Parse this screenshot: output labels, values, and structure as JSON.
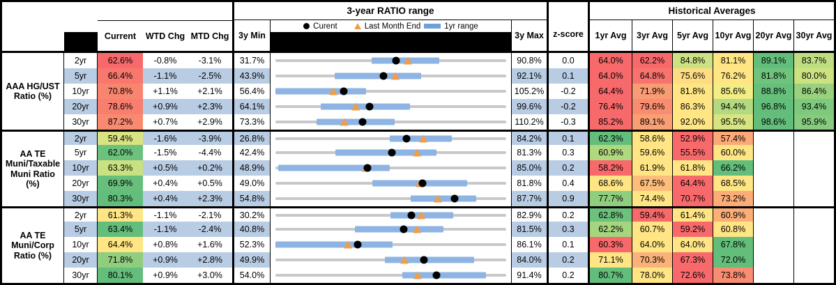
{
  "header": {
    "range_title": "3-year RATIO range",
    "hist_title": "Historical Averages",
    "col_current": "Current",
    "col_wtd": "WTD Chg",
    "col_mtd": "MTD Chg",
    "col_3y_min": "3y Min",
    "col_3y_max": "3y Max",
    "col_zscore": "z-score",
    "avg_cols": [
      "1yr Avg",
      "3yr Avg",
      "5yr Avg",
      "10yr Avg",
      "20yr Avg",
      "30yr Avg"
    ],
    "legend": {
      "current": "Curent",
      "last_month_end": "Last Month End",
      "range_1yr": "1yr range"
    }
  },
  "colors": {
    "stripe_blue": "#B8CCE4",
    "range_line_gray": "#C8C8C8",
    "range_bar_blue": "#8EB4E3",
    "legend_bar_blue": "#6FA0D6",
    "marker_dot_black": "#000000",
    "marker_triangle_orange": "#F39C47",
    "heat_red": "#F8696B",
    "heat_yellow": "#FFE584",
    "heat_green": "#63BE7B"
  },
  "chart_data": {
    "type": "table",
    "note_units": "percent",
    "groups": [
      {
        "label": "AAA HG/UST Ratio (%)",
        "rows": [
          {
            "tenor": "2yr",
            "current": 62.6,
            "wtd": -0.8,
            "mtd": -3.1,
            "min_3y": 31.7,
            "max_3y": 90.8,
            "zscore": 0.0,
            "range_1yr": [
              56.4,
              73.6
            ],
            "last_month_end": 65.6,
            "avgs": [
              64.0,
              62.2,
              84.8,
              81.1,
              89.1,
              83.7
            ],
            "current_bg": "#F8696B",
            "avg_bgs": [
              "#F8696B",
              "#F8696B",
              "#CCE181",
              "#FFE584",
              "#63BE7B",
              "#C0DE81"
            ]
          },
          {
            "tenor": "5yr",
            "current": 66.4,
            "wtd": -1.1,
            "mtd": -2.5,
            "min_3y": 43.9,
            "max_3y": 92.1,
            "zscore": 0.1,
            "range_1yr": [
              56.3,
              74.4
            ],
            "last_month_end": 69.0,
            "avgs": [
              64.0,
              64.8,
              75.6,
              76.2,
              81.8,
              80.0
            ],
            "current_bg": "#F8786E",
            "avg_bgs": [
              "#F8696B",
              "#F8736D",
              "#FEDC82",
              "#FFE584",
              "#70C37C",
              "#CCE281"
            ]
          },
          {
            "tenor": "10yr",
            "current": 70.8,
            "wtd": 1.1,
            "mtd": 2.1,
            "min_3y": 56.4,
            "max_3y": 105.2,
            "zscore": -0.2,
            "range_1yr": [
              56.4,
              75.5
            ],
            "last_month_end": 68.7,
            "avgs": [
              64.4,
              71.9,
              81.8,
              85.6,
              88.8,
              86.4
            ],
            "current_bg": "#F9856F",
            "avg_bgs": [
              "#F8696B",
              "#F99C74",
              "#FFE584",
              "#F2EE85",
              "#66BF7B",
              "#9AD17F"
            ]
          },
          {
            "tenor": "20yr",
            "current": 78.6,
            "wtd": 0.9,
            "mtd": 2.3,
            "min_3y": 64.1,
            "max_3y": 99.6,
            "zscore": -0.2,
            "range_1yr": [
              71.1,
              84.8
            ],
            "last_month_end": 76.4,
            "avgs": [
              76.4,
              79.6,
              86.3,
              94.4,
              96.8,
              93.4
            ],
            "current_bg": "#F87E6F",
            "avg_bgs": [
              "#F8696B",
              "#F98D71",
              "#FFE584",
              "#B3DA80",
              "#63BE7B",
              "#7EC97D"
            ]
          },
          {
            "tenor": "30yr",
            "current": 87.2,
            "wtd": 0.7,
            "mtd": 2.9,
            "min_3y": 73.3,
            "max_3y": 110.2,
            "zscore": -0.3,
            "range_1yr": [
              79.9,
              92.4
            ],
            "last_month_end": 84.3,
            "avgs": [
              85.2,
              89.1,
              92.0,
              95.5,
              98.6,
              95.9
            ],
            "current_bg": "#F98A70",
            "avg_bgs": [
              "#F8696B",
              "#FA9E74",
              "#FFE584",
              "#D6E582",
              "#63BE7B",
              "#86CB7E"
            ]
          }
        ]
      },
      {
        "label": "AA TE Muni/Taxable Muni Ratio (%)",
        "rows": [
          {
            "tenor": "2yr",
            "current": 59.4,
            "wtd": -1.6,
            "mtd": -3.9,
            "min_3y": 26.8,
            "max_3y": 84.2,
            "zscore": 0.1,
            "range_1yr": [
              55.3,
              70.6
            ],
            "last_month_end": 63.5,
            "avgs": [
              62.3,
              58.6,
              52.9,
              57.4,
              null,
              null
            ],
            "current_bg": "#D9E382",
            "avg_bgs": [
              "#63BE7B",
              "#FFE584",
              "#F8696B",
              "#FBA977",
              null,
              null
            ]
          },
          {
            "tenor": "5yr",
            "current": 62.0,
            "wtd": -1.5,
            "mtd": -4.4,
            "min_3y": 42.4,
            "max_3y": 81.3,
            "zscore": 0.3,
            "range_1yr": [
              52.5,
              69.5
            ],
            "last_month_end": 66.3,
            "avgs": [
              60.9,
              59.6,
              55.5,
              60.0,
              null,
              null
            ],
            "current_bg": "#6CC17C",
            "avg_bgs": [
              "#AFD87F",
              "#FFE584",
              "#F8696B",
              "#FFE584",
              null,
              null
            ]
          },
          {
            "tenor": "10yr",
            "current": 63.3,
            "wtd": 0.5,
            "mtd": 0.2,
            "min_3y": 48.9,
            "max_3y": 85.0,
            "zscore": 0.2,
            "range_1yr": [
              49.3,
              66.8
            ],
            "last_month_end": 63.1,
            "avgs": [
              58.2,
              61.9,
              61.8,
              66.2,
              null,
              null
            ],
            "current_bg": "#C9E181",
            "avg_bgs": [
              "#F8696B",
              "#FFE584",
              "#FFE584",
              "#63BE7B",
              null,
              null
            ]
          },
          {
            "tenor": "20yr",
            "current": 69.9,
            "wtd": 0.4,
            "mtd": 0.5,
            "min_3y": 49.0,
            "max_3y": 81.8,
            "zscore": 0.4,
            "range_1yr": [
              62.8,
              76.3
            ],
            "last_month_end": 69.5,
            "avgs": [
              68.6,
              67.5,
              64.4,
              68.5,
              null,
              null
            ],
            "current_bg": "#67BF7B",
            "avg_bgs": [
              "#FFE584",
              "#FCBD7A",
              "#F8696B",
              "#FFE584",
              null,
              null
            ]
          },
          {
            "tenor": "30yr",
            "current": 80.3,
            "wtd": 0.4,
            "mtd": 2.3,
            "min_3y": 54.8,
            "max_3y": 87.7,
            "zscore": 0.9,
            "range_1yr": [
              74.1,
              83.4
            ],
            "last_month_end": 78.0,
            "avgs": [
              77.7,
              74.4,
              70.7,
              73.2,
              null,
              null
            ],
            "current_bg": "#63BE7B",
            "avg_bgs": [
              "#8FCE7E",
              "#FFE584",
              "#F8696B",
              "#FBAC77",
              null,
              null
            ]
          }
        ]
      },
      {
        "label": "AA TE Muni/Corp Ratio (%)",
        "rows": [
          {
            "tenor": "2yr",
            "current": 61.3,
            "wtd": -1.1,
            "mtd": -2.1,
            "min_3y": 30.2,
            "max_3y": 82.9,
            "zscore": 0.2,
            "range_1yr": [
              56.4,
              70.8
            ],
            "last_month_end": 63.5,
            "avgs": [
              62.8,
              59.4,
              61.4,
              60.9,
              null,
              null
            ],
            "current_bg": "#FFE584",
            "avg_bgs": [
              "#6CC17C",
              "#F8696B",
              "#FFE584",
              "#FBAE78",
              null,
              null
            ]
          },
          {
            "tenor": "5yr",
            "current": 63.4,
            "wtd": -1.1,
            "mtd": -2.4,
            "min_3y": 40.8,
            "max_3y": 81.5,
            "zscore": 0.3,
            "range_1yr": [
              54.8,
              70.4
            ],
            "last_month_end": 65.8,
            "avgs": [
              62.2,
              60.7,
              59.2,
              60.8,
              null,
              null
            ],
            "current_bg": "#63BE7B",
            "avg_bgs": [
              "#A5D57F",
              "#FFE584",
              "#F8696B",
              "#FFE584",
              null,
              null
            ]
          },
          {
            "tenor": "10yr",
            "current": 64.4,
            "wtd": 0.8,
            "mtd": 1.6,
            "min_3y": 52.3,
            "max_3y": 86.1,
            "zscore": 0.1,
            "range_1yr": [
              52.3,
              69.5
            ],
            "last_month_end": 62.9,
            "avgs": [
              60.3,
              64.0,
              64.0,
              67.8,
              null,
              null
            ],
            "current_bg": "#FFE584",
            "avg_bgs": [
              "#F8696B",
              "#FFE584",
              "#FFE584",
              "#63BE7B",
              null,
              null
            ]
          },
          {
            "tenor": "20yr",
            "current": 71.8,
            "wtd": 0.9,
            "mtd": 2.8,
            "min_3y": 49.9,
            "max_3y": 84.0,
            "zscore": 0.2,
            "range_1yr": [
              66.1,
              79.3
            ],
            "last_month_end": 69.0,
            "avgs": [
              71.1,
              70.3,
              67.3,
              72.0,
              null,
              null
            ],
            "current_bg": "#90CE7E",
            "avg_bgs": [
              "#FFE584",
              "#FBB278",
              "#F8696B",
              "#63BE7B",
              null,
              null
            ]
          },
          {
            "tenor": "30yr",
            "current": 80.1,
            "wtd": 0.9,
            "mtd": 3.0,
            "min_3y": 54.0,
            "max_3y": 91.4,
            "zscore": 0.2,
            "range_1yr": [
              74.6,
              88.1
            ],
            "last_month_end": 77.0,
            "avgs": [
              80.7,
              78.0,
              72.6,
              73.8,
              null,
              null
            ],
            "current_bg": "#63BE7B",
            "avg_bgs": [
              "#63BE7B",
              "#FFE584",
              "#F8696B",
              "#F98D71",
              null,
              null
            ]
          }
        ]
      }
    ]
  }
}
